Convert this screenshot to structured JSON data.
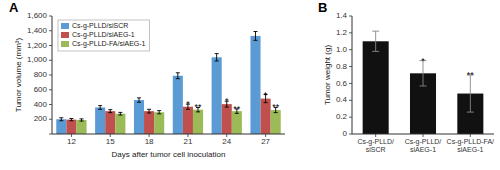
{
  "chart_data": [
    {
      "type": "bar",
      "title": "A",
      "x_label": "Days after tumor cell inoculation",
      "y_label": "Tumor volume (mm³)",
      "categories": [
        12,
        15,
        18,
        21,
        24,
        27
      ],
      "series": [
        {
          "name": "Cs-g-PLLD/siSCR",
          "color": "#5b9bd5",
          "values": [
            200,
            360,
            460,
            790,
            1040,
            1330
          ],
          "errors": [
            20,
            25,
            30,
            40,
            50,
            60
          ]
        },
        {
          "name": "Cs-g-PLLD/siAEG-1",
          "color": "#c0504d",
          "values": [
            195,
            310,
            310,
            370,
            405,
            480
          ],
          "errors": [
            15,
            20,
            25,
            35,
            40,
            55
          ]
        },
        {
          "name": "Cs-g-PLLD-FA/siAEG-1",
          "color": "#9bbb59",
          "values": [
            190,
            275,
            295,
            330,
            310,
            325
          ],
          "errors": [
            15,
            18,
            22,
            30,
            30,
            35
          ]
        }
      ],
      "ylim": [
        0,
        1600
      ],
      "yticks": [
        {
          "value": 0,
          "label": null
        },
        200,
        400,
        600,
        800,
        {
          "value": 1000,
          "label": "1,000"
        },
        {
          "value": 1200,
          "label": "1,200"
        },
        {
          "value": 1400,
          "label": "1,400"
        },
        {
          "value": 1600,
          "label": "1,600"
        }
      ],
      "legend": "upper left",
      "annotations": [
        {
          "text": "*",
          "series": 1,
          "index": 3
        },
        {
          "text": "*",
          "series": 1,
          "index": 4
        },
        {
          "text": "*",
          "series": 1,
          "index": 5
        },
        {
          "text": "**",
          "series": 2,
          "index": 3
        },
        {
          "text": "**",
          "series": 2,
          "index": 4
        },
        {
          "text": "**",
          "series": 2,
          "index": 5
        }
      ]
    },
    {
      "type": "bar",
      "title": "B",
      "y_label": "Tumor weight (g)",
      "categories": [
        "Cs-g-PLLD/\nsiSCR",
        "Cs-g-PLLD/\nsiAEG-1",
        "Cs-g-PLLD-FA/\nsiAEG-1"
      ],
      "values": [
        1.1,
        0.72,
        0.48
      ],
      "errors": [
        0.12,
        0.15,
        0.22
      ],
      "color": "#111111",
      "ylim": [
        0,
        1.4
      ],
      "yticks": [
        0,
        0.2,
        0.4,
        0.6,
        0.8,
        {
          "value": 1.0,
          "label": "1.0"
        },
        1.2,
        1.4
      ],
      "annotations": [
        {
          "text": "*",
          "index": 1
        },
        {
          "text": "**",
          "index": 2
        }
      ]
    }
  ]
}
